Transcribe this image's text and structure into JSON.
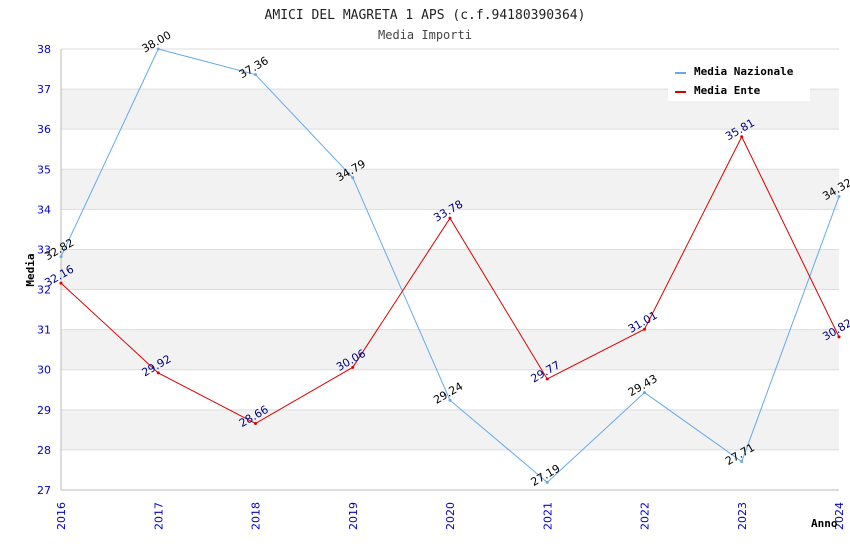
{
  "chart_data": {
    "type": "line",
    "title": "AMICI DEL MAGRETA 1 APS (c.f.94180390364)",
    "subtitle": "Media Importi",
    "xlabel": "Anno",
    "ylabel": "Media",
    "x": [
      "2016",
      "2017",
      "2018",
      "2019",
      "2020",
      "2021",
      "2022",
      "2023",
      "2024"
    ],
    "ylim": [
      27,
      38
    ],
    "yticks": [
      "27",
      "28",
      "29",
      "30",
      "31",
      "32",
      "33",
      "34",
      "35",
      "36",
      "37",
      "38"
    ],
    "grid": "horizontal bands",
    "legend_position": "top-right",
    "series": [
      {
        "name": "Media Nazionale",
        "color": "#66aaee",
        "label_color": "#000000",
        "values": [
          32.82,
          38.0,
          37.36,
          34.79,
          29.24,
          27.19,
          29.43,
          27.71,
          34.32
        ],
        "labels": [
          "32.82",
          "38.00",
          "37.36",
          "34.79",
          "29.24",
          "27.19",
          "29.43",
          "27.71",
          "34.32"
        ]
      },
      {
        "name": "Media Ente",
        "color": "#dd0000",
        "label_color": "#000080",
        "values": [
          32.16,
          29.92,
          28.66,
          30.06,
          33.78,
          29.77,
          31.01,
          35.81,
          30.82
        ],
        "labels": [
          "32.16",
          "29.92",
          "28.66",
          "30.06",
          "33.78",
          "29.77",
          "31.01",
          "35.81",
          "30.82"
        ]
      }
    ]
  }
}
